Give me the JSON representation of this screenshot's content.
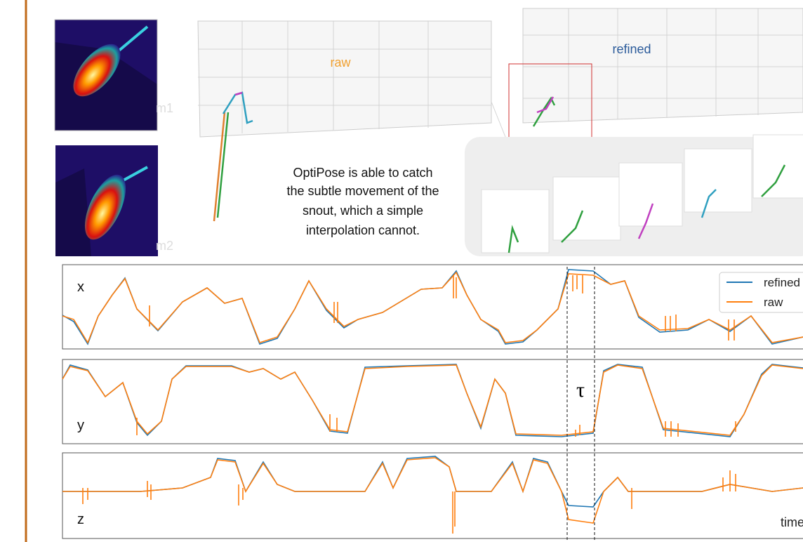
{
  "panels": {
    "raw_label": "raw",
    "refined_label": "refined"
  },
  "camera_labels": [
    "m1",
    "m2"
  ],
  "caption": [
    "OptiPose is able to catch",
    "the subtle movement of the",
    "snout, which a simple",
    "interpolation cannot."
  ],
  "plots": {
    "axes": [
      "x",
      "y",
      "z"
    ],
    "tau": "τ",
    "legend": [
      "refined",
      "raw"
    ],
    "time_label": "time"
  }
}
